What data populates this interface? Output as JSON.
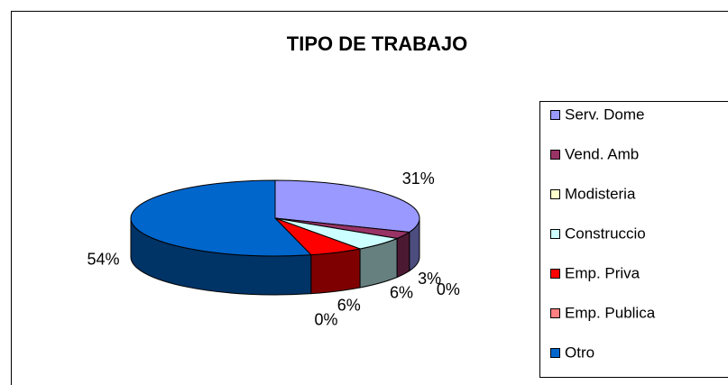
{
  "chart_data": {
    "type": "pie",
    "title": "TIPO DE TRABAJO",
    "categories": [
      "Serv. Dome",
      "Vend. Amb",
      "Modisteria",
      "Construccio",
      "Emp. Priva",
      "Emp. Publica",
      "Otro"
    ],
    "values": [
      31,
      3,
      0,
      6,
      6,
      0,
      54
    ],
    "value_labels": [
      "31%",
      "3%",
      "0%",
      "6%",
      "6%",
      "0%",
      "54%"
    ],
    "colors": [
      "#9999ff",
      "#993366",
      "#ffffcc",
      "#ccffff",
      "#ff0000",
      "#ff8080",
      "#0066cc"
    ],
    "legend": "right"
  }
}
